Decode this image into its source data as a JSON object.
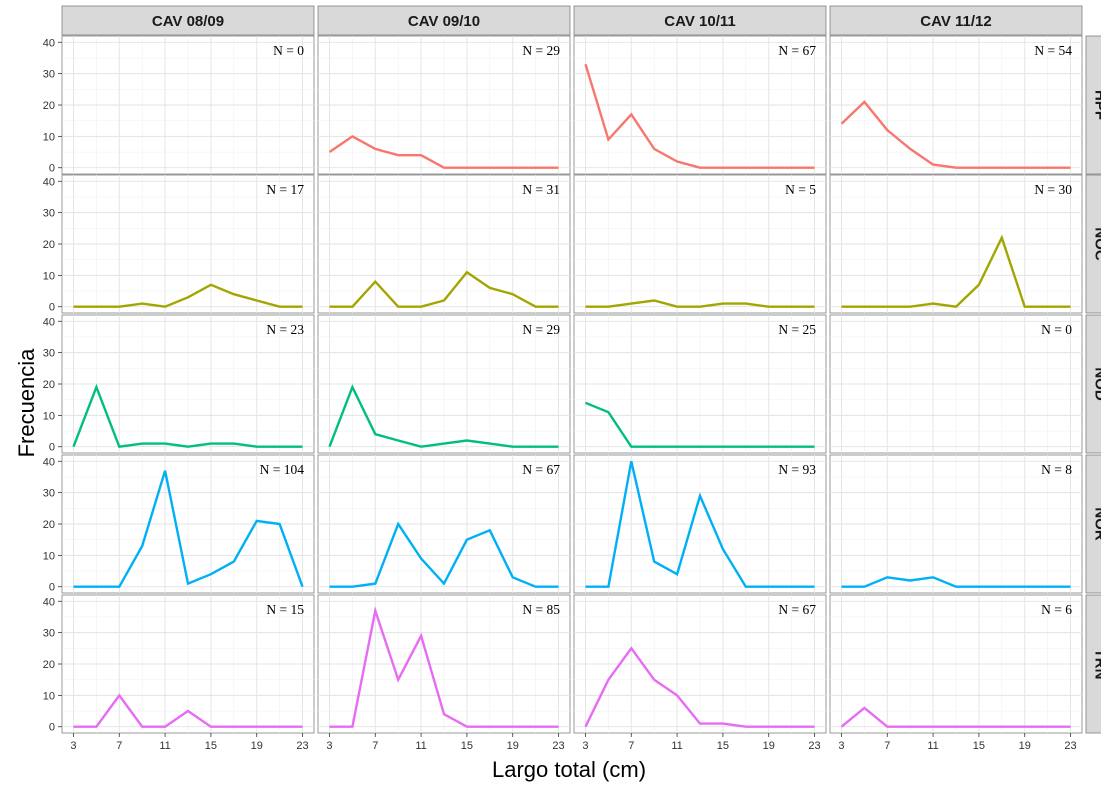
{
  "chart_data": {
    "type": "line",
    "layout": "faceted-grid",
    "xlabel": "Largo total (cm)",
    "ylabel": "Frecuencia",
    "x": [
      3,
      5,
      7,
      9,
      11,
      13,
      15,
      17,
      19,
      21,
      23
    ],
    "x_ticks": [
      "3",
      "7",
      "11",
      "15",
      "19",
      "23"
    ],
    "y_ticks": [
      "0",
      "10",
      "20",
      "30",
      "40"
    ],
    "xlim": [
      2.0,
      24.0
    ],
    "ylim": [
      -2,
      42
    ],
    "grid": true,
    "columns": [
      "CAV 08/09",
      "CAV 09/10",
      "CAV 10/11",
      "CAV 11/12"
    ],
    "rows": [
      "HPF",
      "NOC",
      "NOD",
      "NOR",
      "TRN"
    ],
    "colors": {
      "HPF": "#F8766D",
      "NOC": "#A3A500",
      "NOD": "#00BF7D",
      "NOR": "#00B0F6",
      "TRN": "#E76BF3"
    },
    "panels": [
      {
        "row": "HPF",
        "column": "CAV 08/09",
        "n_label": "N = 0",
        "values": []
      },
      {
        "row": "HPF",
        "column": "CAV 09/10",
        "n_label": "N = 29",
        "values": [
          5,
          10,
          6,
          4,
          4,
          0,
          0,
          0,
          0,
          0,
          0
        ]
      },
      {
        "row": "HPF",
        "column": "CAV 10/11",
        "n_label": "N = 67",
        "values": [
          33,
          9,
          17,
          6,
          2,
          0,
          0,
          0,
          0,
          0,
          0
        ]
      },
      {
        "row": "HPF",
        "column": "CAV 11/12",
        "n_label": "N = 54",
        "values": [
          14,
          21,
          12,
          6,
          1,
          0,
          0,
          0,
          0,
          0,
          0
        ]
      },
      {
        "row": "NOC",
        "column": "CAV 08/09",
        "n_label": "N = 17",
        "values": [
          0,
          0,
          0,
          1,
          0,
          3,
          7,
          4,
          2,
          0,
          0
        ]
      },
      {
        "row": "NOC",
        "column": "CAV 09/10",
        "n_label": "N = 31",
        "values": [
          0,
          0,
          8,
          0,
          0,
          2,
          11,
          6,
          4,
          0,
          0
        ]
      },
      {
        "row": "NOC",
        "column": "CAV 10/11",
        "n_label": "N = 5",
        "values": [
          0,
          0,
          1,
          2,
          0,
          0,
          1,
          1,
          0,
          0,
          0
        ]
      },
      {
        "row": "NOC",
        "column": "CAV 11/12",
        "n_label": "N = 30",
        "values": [
          0,
          0,
          0,
          0,
          1,
          0,
          7,
          22,
          0,
          0,
          0
        ]
      },
      {
        "row": "NOD",
        "column": "CAV 08/09",
        "n_label": "N = 23",
        "values": [
          0,
          19,
          0,
          1,
          1,
          0,
          1,
          1,
          0,
          0,
          0
        ]
      },
      {
        "row": "NOD",
        "column": "CAV 09/10",
        "n_label": "N = 29",
        "values": [
          0,
          19,
          4,
          2,
          0,
          1,
          2,
          1,
          0,
          0,
          0
        ]
      },
      {
        "row": "NOD",
        "column": "CAV 10/11",
        "n_label": "N = 25",
        "values": [
          14,
          11,
          0,
          0,
          0,
          0,
          0,
          0,
          0,
          0,
          0
        ]
      },
      {
        "row": "NOD",
        "column": "CAV 11/12",
        "n_label": "N = 0",
        "values": []
      },
      {
        "row": "NOR",
        "column": "CAV 08/09",
        "n_label": "N = 104",
        "values": [
          0,
          0,
          0,
          13,
          37,
          1,
          4,
          8,
          21,
          20,
          0
        ]
      },
      {
        "row": "NOR",
        "column": "CAV 09/10",
        "n_label": "N = 67",
        "values": [
          0,
          0,
          1,
          20,
          9,
          1,
          15,
          18,
          3,
          0,
          0
        ]
      },
      {
        "row": "NOR",
        "column": "CAV 10/11",
        "n_label": "N = 93",
        "values": [
          0,
          0,
          40,
          8,
          4,
          29,
          12,
          0,
          0,
          0,
          0
        ]
      },
      {
        "row": "NOR",
        "column": "CAV 11/12",
        "n_label": "N = 8",
        "values": [
          0,
          0,
          3,
          2,
          3,
          0,
          0,
          0,
          0,
          0,
          0
        ]
      },
      {
        "row": "TRN",
        "column": "CAV 08/09",
        "n_label": "N = 15",
        "values": [
          0,
          0,
          10,
          0,
          0,
          5,
          0,
          0,
          0,
          0,
          0
        ]
      },
      {
        "row": "TRN",
        "column": "CAV 09/10",
        "n_label": "N = 85",
        "values": [
          0,
          0,
          37,
          15,
          29,
          4,
          0,
          0,
          0,
          0,
          0
        ]
      },
      {
        "row": "TRN",
        "column": "CAV 10/11",
        "n_label": "N = 67",
        "values": [
          0,
          15,
          25,
          15,
          10,
          1,
          1,
          0,
          0,
          0,
          0
        ]
      },
      {
        "row": "TRN",
        "column": "CAV 11/12",
        "n_label": "N = 6",
        "values": [
          0,
          6,
          0,
          0,
          0,
          0,
          0,
          0,
          0,
          0,
          0
        ]
      }
    ]
  }
}
